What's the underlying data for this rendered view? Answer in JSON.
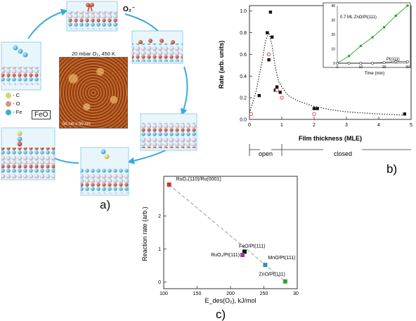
{
  "panel_a": {
    "label": "a)",
    "o2_label": "O₂⁻",
    "stm_condition": "20 mbar O₂, 450 K",
    "stm_scale": "50 nm x 50 nm",
    "legend": {
      "c": "- C",
      "o": "- O",
      "fe": "- Fe",
      "box": "FeO"
    },
    "colors": {
      "fe": "#3aaad8",
      "o": "#c0392b",
      "c": "#d9d36a",
      "pt": "#c8c6d8",
      "arrow": "#3aaad8"
    }
  },
  "panel_b": {
    "label": "b)",
    "xlabel": "Film thickness (MLE)",
    "ylabel": "Rate (arb. units)",
    "region_open": "open",
    "region_closed": "closed",
    "inset": {
      "xlabel": "Time (min)",
      "series_label_zno": "0.7 ML ZnO/Pt(111)",
      "series_label_pt": "Pt(111)"
    }
  },
  "panel_c": {
    "label": "c)",
    "xlabel": "E_des(O₂), kJ/mol",
    "ylabel": "Reaction rate (arb.)"
  },
  "chart_data": [
    {
      "type": "scatter",
      "xlabel": "Film thickness (MLE)",
      "ylabel": "Rate (arb. units)",
      "xlim": [
        0,
        5
      ],
      "ylim": [
        0,
        1.05
      ],
      "xticks": [
        0,
        1,
        2,
        3,
        4,
        5
      ],
      "yticks": [
        0.0,
        0.2,
        0.4,
        0.6,
        0.8,
        1.0
      ],
      "series": [
        {
          "marker": "black-square",
          "x": [
            0.3,
            0.55,
            0.6,
            0.65,
            0.7,
            0.8,
            0.85,
            0.95,
            2.0,
            2.1,
            4.8
          ],
          "y": [
            0.22,
            0.8,
            0.55,
            0.99,
            0.76,
            0.27,
            0.3,
            0.25,
            0.1,
            0.1,
            0.05
          ]
        },
        {
          "marker": "red-open-circle",
          "x": [
            0.05,
            0.6,
            0.85,
            1.0,
            2.0
          ],
          "y": [
            0.05,
            0.6,
            0.27,
            0.2,
            0.05
          ]
        }
      ],
      "fit": {
        "style": "dotted",
        "x": [
          0,
          0.2,
          0.4,
          0.5,
          0.6,
          0.7,
          0.8,
          0.9,
          1.0,
          1.2,
          1.5,
          2.0,
          2.5,
          3,
          4,
          4.8
        ],
        "y": [
          0.06,
          0.25,
          0.55,
          0.73,
          0.8,
          0.68,
          0.48,
          0.35,
          0.3,
          0.22,
          0.17,
          0.12,
          0.09,
          0.07,
          0.05,
          0.04
        ]
      }
    },
    {
      "type": "line",
      "xlabel": "Time (min)",
      "xlim": [
        0,
        30
      ],
      "ylim": [
        0,
        40
      ],
      "xticks": [
        0,
        10,
        20,
        30
      ],
      "yticks": [
        0,
        10,
        20,
        30,
        40
      ],
      "series": [
        {
          "name": "0.7 ML ZnO/Pt(111)",
          "color": "#3a9a3a",
          "x": [
            0,
            5,
            10,
            15,
            20,
            25,
            30
          ],
          "y": [
            0,
            5,
            12,
            18,
            25,
            33,
            40
          ]
        },
        {
          "name": "Pt(111)",
          "color": "#222222",
          "x": [
            0,
            5,
            10,
            15,
            20,
            25,
            30
          ],
          "y": [
            0,
            0,
            0,
            0,
            0.5,
            1,
            1
          ]
        }
      ]
    },
    {
      "type": "scatter",
      "xlabel": "E_des(O₂), kJ/mol",
      "ylabel": "Reaction rate (arb.)",
      "xlim": [
        100,
        300
      ],
      "ylim": [
        -0.2,
        3.2
      ],
      "xticks": [
        100,
        150,
        200,
        250,
        300
      ],
      "yticks": [
        0,
        1,
        2
      ],
      "points": [
        {
          "label": "RuO₂(110)/Ru(0001)",
          "x": 108,
          "y": 2.95,
          "color": "#d03030"
        },
        {
          "label": "FeO/Pt(111)",
          "x": 221,
          "y": 0.92,
          "color": "#111111"
        },
        {
          "label": "RuO₂/Pt(111)",
          "x": 218,
          "y": 0.82,
          "color": "#9a3aa0"
        },
        {
          "label": "MnO/Pt(111)",
          "x": 252,
          "y": 0.52,
          "color": "#3a8ac0"
        },
        {
          "label": "ZnO/Pt(111)",
          "x": 282,
          "y": 0.02,
          "color": "#3a9a3a"
        }
      ],
      "trend": {
        "style": "dashed",
        "x": [
          108,
          282
        ],
        "y": [
          2.95,
          0.02
        ]
      }
    }
  ]
}
